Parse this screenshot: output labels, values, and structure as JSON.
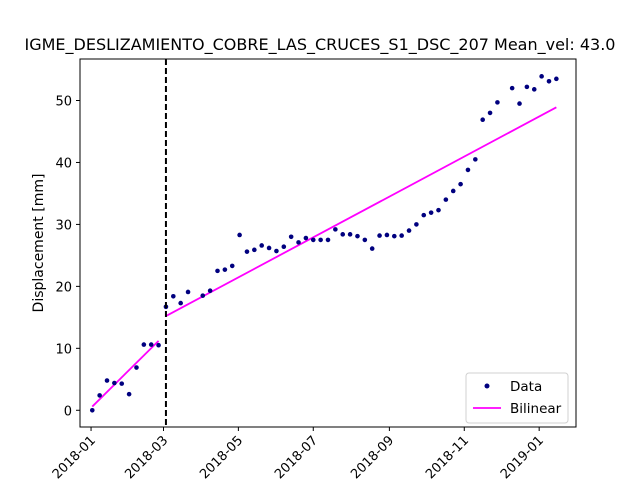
{
  "chart_data": {
    "type": "scatter",
    "title": "IGME_DESLIZAMIENTO_COBRE_LAS_CRUCES_S1_DSC_207     Mean_vel: 43.0",
    "xlabel": "",
    "ylabel": "Displacement [mm]",
    "x_axis_type": "date",
    "xlim": [
      "2017-12-23",
      "2019-01-31"
    ],
    "ylim": [
      -2.7,
      56.7
    ],
    "x_ticks": [
      "2018-01-01",
      "2018-03-01",
      "2018-05-01",
      "2018-07-01",
      "2018-09-01",
      "2018-11-01",
      "2019-01-01"
    ],
    "x_tick_labels": [
      "2018-01",
      "2018-03",
      "2018-05",
      "2018-07",
      "2018-09",
      "2018-11",
      "2019-01"
    ],
    "y_ticks": [
      0,
      10,
      20,
      30,
      40,
      50
    ],
    "grid": false,
    "legend": {
      "position": "lower-right",
      "entries": [
        "Data",
        "Bilinear"
      ]
    },
    "vertical_marker": {
      "x": "2018-03-03",
      "style": "dashed",
      "color": "#000000"
    },
    "series": [
      {
        "name": "Data",
        "kind": "scatter",
        "color": "#00007f",
        "points": [
          [
            "2018-01-02",
            0.0
          ],
          [
            "2018-01-08",
            2.4
          ],
          [
            "2018-01-14",
            4.8
          ],
          [
            "2018-01-20",
            4.4
          ],
          [
            "2018-01-26",
            4.3
          ],
          [
            "2018-02-01",
            2.6
          ],
          [
            "2018-02-07",
            6.9
          ],
          [
            "2018-02-13",
            10.6
          ],
          [
            "2018-02-19",
            10.6
          ],
          [
            "2018-02-25",
            10.5
          ],
          [
            "2018-03-03",
            16.7
          ],
          [
            "2018-03-09",
            18.4
          ],
          [
            "2018-03-15",
            17.3
          ],
          [
            "2018-03-21",
            19.1
          ],
          [
            "2018-04-02",
            18.5
          ],
          [
            "2018-04-08",
            19.3
          ],
          [
            "2018-04-14",
            22.5
          ],
          [
            "2018-04-20",
            22.7
          ],
          [
            "2018-04-26",
            23.3
          ],
          [
            "2018-05-02",
            28.3
          ],
          [
            "2018-05-08",
            25.6
          ],
          [
            "2018-05-14",
            25.9
          ],
          [
            "2018-05-20",
            26.6
          ],
          [
            "2018-05-26",
            26.2
          ],
          [
            "2018-06-01",
            25.7
          ],
          [
            "2018-06-07",
            26.4
          ],
          [
            "2018-06-13",
            28.0
          ],
          [
            "2018-06-19",
            27.1
          ],
          [
            "2018-06-25",
            27.8
          ],
          [
            "2018-07-01",
            27.5
          ],
          [
            "2018-07-07",
            27.5
          ],
          [
            "2018-07-13",
            27.5
          ],
          [
            "2018-07-19",
            29.2
          ],
          [
            "2018-07-25",
            28.4
          ],
          [
            "2018-07-31",
            28.4
          ],
          [
            "2018-08-06",
            28.1
          ],
          [
            "2018-08-12",
            27.5
          ],
          [
            "2018-08-18",
            26.1
          ],
          [
            "2018-08-24",
            28.2
          ],
          [
            "2018-08-30",
            28.3
          ],
          [
            "2018-09-05",
            28.1
          ],
          [
            "2018-09-11",
            28.2
          ],
          [
            "2018-09-17",
            29.0
          ],
          [
            "2018-09-23",
            30.0
          ],
          [
            "2018-09-29",
            31.5
          ],
          [
            "2018-10-05",
            31.9
          ],
          [
            "2018-10-11",
            32.3
          ],
          [
            "2018-10-17",
            34.0
          ],
          [
            "2018-10-23",
            35.4
          ],
          [
            "2018-10-29",
            36.5
          ],
          [
            "2018-11-04",
            38.8
          ],
          [
            "2018-11-10",
            40.5
          ],
          [
            "2018-11-16",
            46.9
          ],
          [
            "2018-11-22",
            48.0
          ],
          [
            "2018-11-28",
            49.7
          ],
          [
            "2018-12-10",
            52.0
          ],
          [
            "2018-12-16",
            49.5
          ],
          [
            "2018-12-22",
            52.2
          ],
          [
            "2018-12-28",
            51.8
          ],
          [
            "2019-01-03",
            53.9
          ],
          [
            "2019-01-09",
            53.1
          ],
          [
            "2019-01-15",
            53.5
          ]
        ]
      },
      {
        "name": "Bilinear",
        "kind": "line",
        "color": "#ff00ff",
        "segments": [
          [
            [
              "2018-01-02",
              0.6
            ],
            [
              "2018-02-25",
              11.2
            ]
          ],
          [
            [
              "2018-03-03",
              15.2
            ],
            [
              "2019-01-15",
              48.9
            ]
          ]
        ]
      }
    ]
  }
}
